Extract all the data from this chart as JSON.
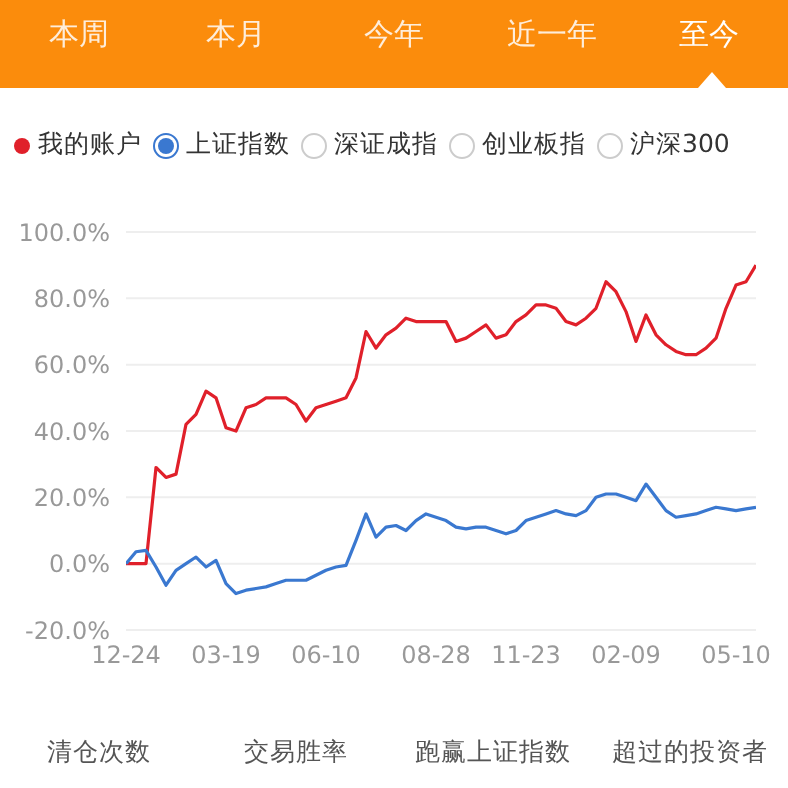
{
  "chart_data": [
    {
      "type": "other",
      "annotations": [
        "本周",
        "本月",
        "今年",
        "近一年",
        "至今"
      ]
    },
    {
      "type": "line",
      "legend": "top",
      "grid": "y",
      "marker": "none",
      "line_style": "solid",
      "annotations": [
        "深证成指",
        "创业板指",
        "沪深300"
      ],
      "categories": [
        "12-24",
        null,
        null,
        null,
        null,
        null,
        null,
        null,
        null,
        null,
        "03-19",
        null,
        null,
        null,
        null,
        null,
        null,
        null,
        null,
        null,
        "06-10",
        null,
        null,
        null,
        null,
        null,
        null,
        null,
        null,
        null,
        null,
        "08-28",
        null,
        null,
        null,
        null,
        null,
        null,
        null,
        null,
        "11-23",
        null,
        null,
        null,
        null,
        null,
        null,
        null,
        null,
        null,
        "02-09",
        null,
        null,
        null,
        null,
        null,
        null,
        null,
        null,
        null,
        null,
        "05-10",
        null,
        null
      ],
      "ylim": [
        -20,
        100
      ],
      "yticks": [
        {
          "value": -20,
          "label": "-20.0%"
        },
        {
          "value": 0,
          "label": "0.0%"
        },
        {
          "value": 20,
          "label": "20.0%"
        },
        {
          "value": 40,
          "label": "40.0%"
        },
        {
          "value": 60,
          "label": "60.0%"
        },
        {
          "value": 80,
          "label": "80.0%"
        },
        {
          "value": 100,
          "label": "100.0%"
        }
      ],
      "series": [
        {
          "name": "我的账户",
          "color": "#e0202a",
          "values": [
            0,
            0,
            0,
            29,
            26,
            27,
            42,
            45,
            52,
            50,
            41,
            40,
            47,
            48,
            50,
            50,
            50,
            48,
            43,
            47,
            48,
            49,
            50,
            56,
            70,
            65,
            69,
            71,
            74,
            73,
            73,
            73,
            73,
            67,
            68,
            70,
            72,
            68,
            69,
            73,
            75,
            78,
            78,
            77,
            73,
            72,
            74,
            77,
            85,
            82,
            76,
            67,
            75,
            69,
            66,
            64,
            63,
            63,
            65,
            68,
            77,
            84,
            85,
            90
          ]
        },
        {
          "name": "上证指数",
          "color": "#3a78d0",
          "values": [
            0,
            3.6,
            4,
            -1,
            -6.5,
            -2,
            0,
            2,
            -1,
            1,
            -6,
            -9,
            -8,
            -7.5,
            -7,
            -6,
            -5,
            -5,
            -5,
            -3.5,
            -2,
            -1,
            -0.5,
            7,
            15,
            8,
            11,
            11.5,
            10,
            13,
            15,
            14,
            13,
            11,
            10.5,
            11,
            11,
            10,
            9,
            10,
            13,
            14,
            15,
            16,
            15,
            14.5,
            16,
            20,
            21,
            21,
            20,
            19,
            24,
            20,
            16,
            14,
            14.5,
            15,
            16,
            17,
            16.5,
            16,
            16.5,
            17
          ]
        }
      ]
    },
    {
      "type": "other",
      "annotations": [
        "清仓次数",
        "交易胜率",
        "跑赢上证指数",
        "超过的投资者"
      ]
    }
  ]
}
